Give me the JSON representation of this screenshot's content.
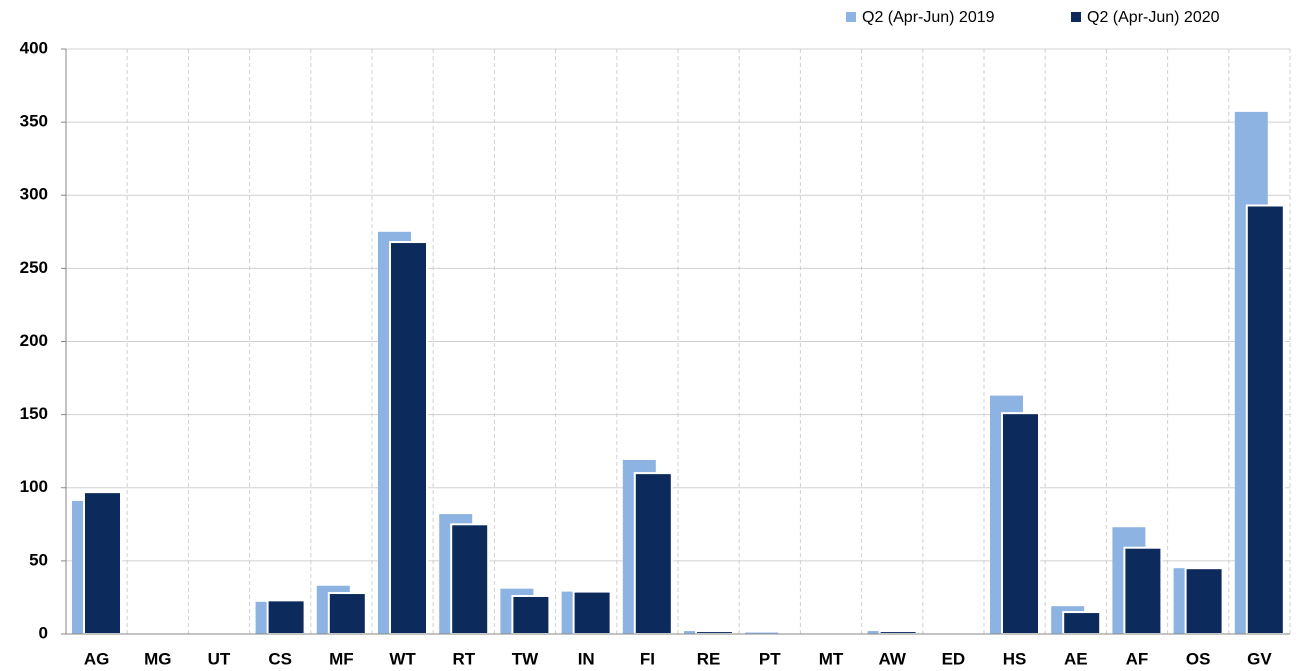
{
  "chart_data": {
    "type": "bar",
    "categories": [
      "AG",
      "MG",
      "UT",
      "CS",
      "MF",
      "WT",
      "RT",
      "TW",
      "IN",
      "FI",
      "RE",
      "PT",
      "MT",
      "AW",
      "ED",
      "HS",
      "AE",
      "AF",
      "OS",
      "GV"
    ],
    "series": [
      {
        "name": "Q2 (Apr-Jun) 2019",
        "color": "#8db3e2",
        "values": [
          91,
          0,
          0,
          22,
          33,
          275,
          82,
          31,
          29,
          119,
          2,
          1,
          0,
          2,
          0,
          163,
          19,
          73,
          45,
          357
        ]
      },
      {
        "name": "Q2 (Apr-Jun) 2020",
        "color": "#0c2a5c",
        "values": [
          97,
          0,
          0,
          23,
          28,
          268,
          75,
          26,
          29,
          110,
          2,
          0,
          0,
          2,
          0,
          151,
          15,
          59,
          45,
          293
        ]
      }
    ],
    "ylim": [
      0,
      400
    ],
    "yticks": [
      0,
      50,
      100,
      150,
      200,
      250,
      300,
      350,
      400
    ],
    "grid": true,
    "legend": "top-right"
  }
}
